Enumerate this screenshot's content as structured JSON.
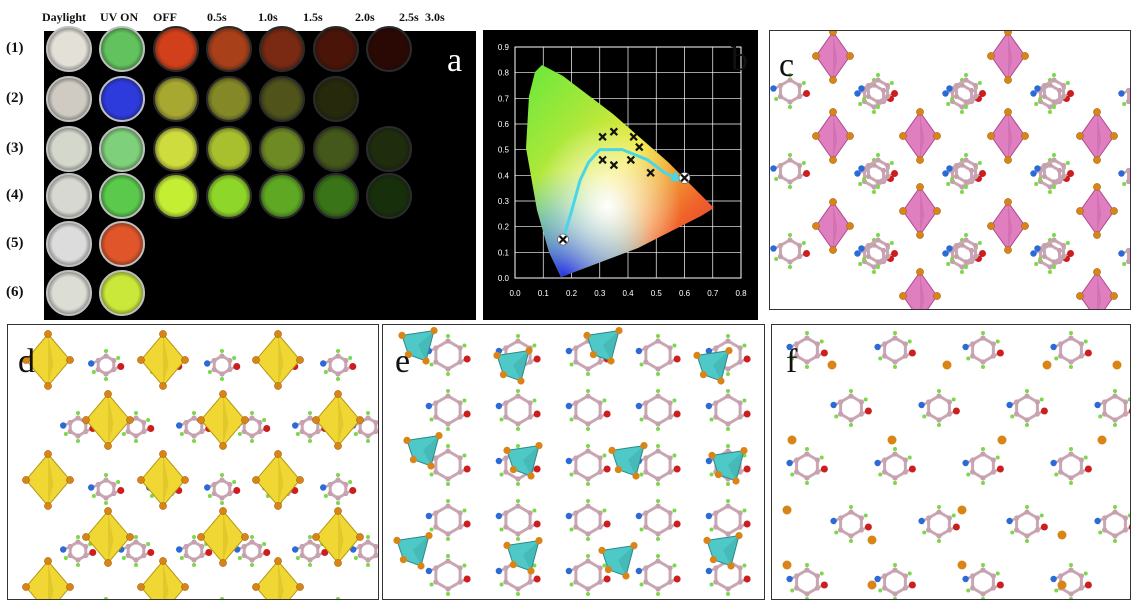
{
  "figure": {
    "panel_a": {
      "letter": "a",
      "column_headers": [
        "Daylight",
        "UV ON",
        "OFF",
        "0.5s",
        "1.0s",
        "1.5s",
        "2.0s",
        "2.5s",
        "3.0s"
      ],
      "row_labels": [
        "(1)",
        "(2)",
        "(3)",
        "(4)",
        "(5)",
        "(6)"
      ],
      "dish_colors": [
        [
          "#e3e0d8",
          "#62c25e",
          "#d2401b",
          "#a8401a",
          "#7a2a12",
          "#4a1408",
          "#2a0804",
          null,
          null
        ],
        [
          "#cfcbc2",
          "#2d3bdc",
          "#a6a831",
          "#858826",
          "#50541a",
          "#27290c",
          null,
          null,
          null
        ],
        [
          "#d4d8cc",
          "#7fd07a",
          "#cfdc3e",
          "#a9c02e",
          "#6e8a24",
          "#44581b",
          "#1f2c0e",
          null,
          null
        ],
        [
          "#d8d8d2",
          "#5ac94c",
          "#c4ee34",
          "#8ed62a",
          "#5ea824",
          "#3a7418",
          "#17300b",
          null,
          null
        ],
        [
          "#dcdcdc",
          "#e0562a",
          null,
          null,
          null,
          null,
          null,
          null,
          null
        ],
        [
          "#dcddd5",
          "#c9e83a",
          null,
          null,
          null,
          null,
          null,
          null,
          null
        ]
      ]
    },
    "panel_b": {
      "letter": "b",
      "colors": {
        "path": "#49d6e6",
        "marker": "#111111"
      }
    },
    "panel_c": {
      "letter": "c"
    },
    "panel_d": {
      "letter": "d"
    },
    "panel_e": {
      "letter": "e"
    },
    "panel_f": {
      "letter": "f"
    }
  },
  "chart_data": {
    "type": "scatter",
    "title": "",
    "xlabel": "",
    "ylabel": "",
    "xlim": [
      0,
      0.8
    ],
    "ylim": [
      0,
      0.9
    ],
    "x_ticks": [
      "0.0",
      "0.1",
      "0.2",
      "0.3",
      "0.4",
      "0.5",
      "0.6",
      "0.7",
      "0.8"
    ],
    "y_ticks": [
      "0.0",
      "0.1",
      "0.2",
      "0.3",
      "0.4",
      "0.5",
      "0.6",
      "0.7",
      "0.8",
      "0.9"
    ],
    "grid": true,
    "series": [
      {
        "points": [
          {
            "x": 0.17,
            "y": 0.15
          },
          {
            "x": 0.31,
            "y": 0.46
          },
          {
            "x": 0.35,
            "y": 0.44
          },
          {
            "x": 0.31,
            "y": 0.55
          },
          {
            "x": 0.35,
            "y": 0.57
          },
          {
            "x": 0.42,
            "y": 0.55
          },
          {
            "x": 0.44,
            "y": 0.51
          },
          {
            "x": 0.41,
            "y": 0.46
          },
          {
            "x": 0.48,
            "y": 0.41
          },
          {
            "x": 0.6,
            "y": 0.39
          }
        ]
      }
    ],
    "path_curves": [
      [
        [
          0.17,
          0.15
        ],
        [
          0.2,
          0.26
        ],
        [
          0.23,
          0.38
        ],
        [
          0.26,
          0.45
        ],
        [
          0.3,
          0.5
        ],
        [
          0.38,
          0.5
        ],
        [
          0.47,
          0.46
        ],
        [
          0.53,
          0.41
        ],
        [
          0.59,
          0.38
        ]
      ]
    ]
  }
}
